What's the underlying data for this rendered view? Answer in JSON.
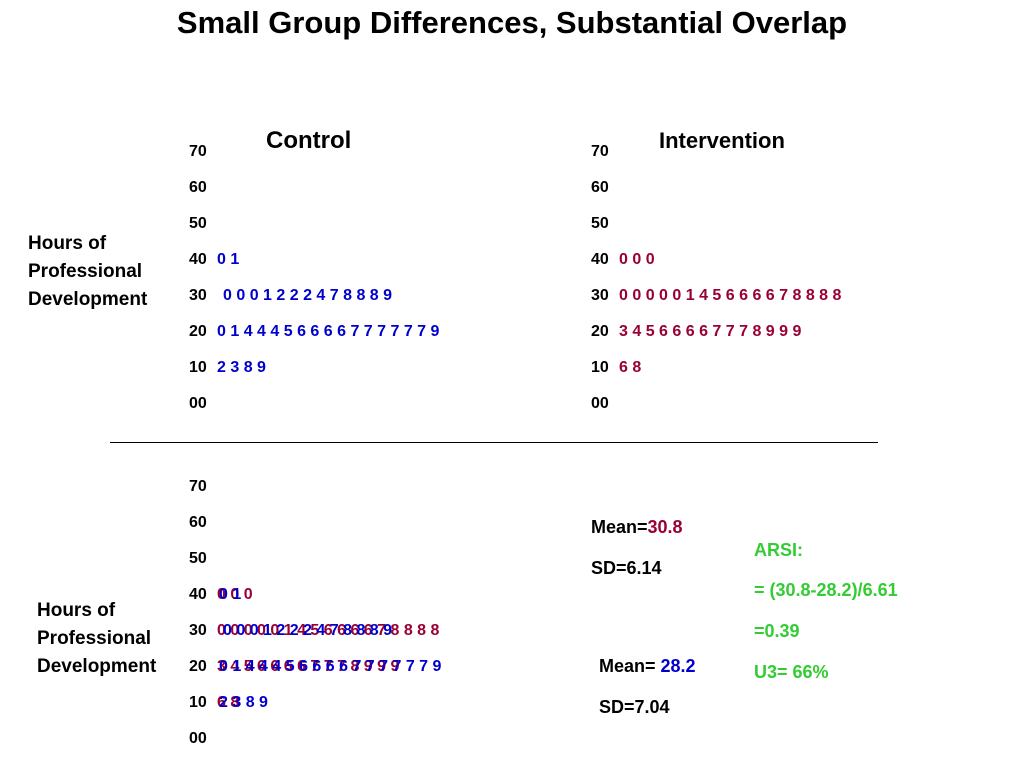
{
  "title": "Small Group Differences, Substantial Overlap",
  "colors": {
    "control": "#0000cc",
    "intervention": "#990033",
    "arsi": "#33cc33"
  },
  "y_label": "Hours of Professional Development",
  "top": {
    "control": {
      "heading": "Control",
      "rows": [
        {
          "stem": "70",
          "leaves": ""
        },
        {
          "stem": "60",
          "leaves": ""
        },
        {
          "stem": "50",
          "leaves": ""
        },
        {
          "stem": "40",
          "leaves": "0 1"
        },
        {
          "stem": "30",
          "leaves": "0 0 0 1 2 2 2 4 7 8 8 8 9"
        },
        {
          "stem": "20",
          "leaves": "0 1 4 4 4 5 6 6 6 6 7 7 7 7 7 7 9"
        },
        {
          "stem": "10",
          "leaves": "2 3 8 9"
        },
        {
          "stem": "00",
          "leaves": ""
        }
      ]
    },
    "intervention": {
      "heading": "Intervention",
      "rows": [
        {
          "stem": "70",
          "leaves": ""
        },
        {
          "stem": "60",
          "leaves": ""
        },
        {
          "stem": "50",
          "leaves": ""
        },
        {
          "stem": "40",
          "leaves": "0 0 0"
        },
        {
          "stem": "30",
          "leaves": "0 0 0 0 0 1 4 5 6 6 6 6 7 8 8 8 8"
        },
        {
          "stem": "20",
          "leaves": "3 4 5 6 6 6 6 7 7 7 8 9 9 9"
        },
        {
          "stem": "10",
          "leaves": "6 8"
        },
        {
          "stem": "00",
          "leaves": ""
        }
      ]
    }
  },
  "bottom": {
    "rows": [
      {
        "stem": "70",
        "control": "",
        "intervention": ""
      },
      {
        "stem": "60",
        "control": "",
        "intervention": ""
      },
      {
        "stem": "50",
        "control": "",
        "intervention": ""
      },
      {
        "stem": "40",
        "control": "0 1",
        "intervention": "0 0 0"
      },
      {
        "stem": "30",
        "control": "0 0 0 1 2 2 2 4 7 8 8 8 9",
        "intervention": "0 0 0 0 0 1 4 5 6 6 6 6 7 8 8 8 8"
      },
      {
        "stem": "20",
        "control": "0 1 4 4 4 5 6 6 6 6 7 7 7 7 7 7 9",
        "intervention": "3 4 5 6 6 6 6 7 7 7 8 9 9 9"
      },
      {
        "stem": "10",
        "control": "2 3 8 9",
        "intervention": "6 8"
      },
      {
        "stem": "00",
        "control": "",
        "intervention": ""
      }
    ]
  },
  "stats": {
    "intervention_mean_label": "Mean=",
    "intervention_mean_value": "30.8",
    "intervention_sd": "SD=6.14",
    "control_mean_label": "Mean= ",
    "control_mean_value": "28.2",
    "control_sd": "SD=7.04"
  },
  "arsi": {
    "heading": "ARSI:",
    "formula": "= (30.8-28.2)/6.61",
    "result": "=0.39",
    "u3": "U3= 66%"
  }
}
